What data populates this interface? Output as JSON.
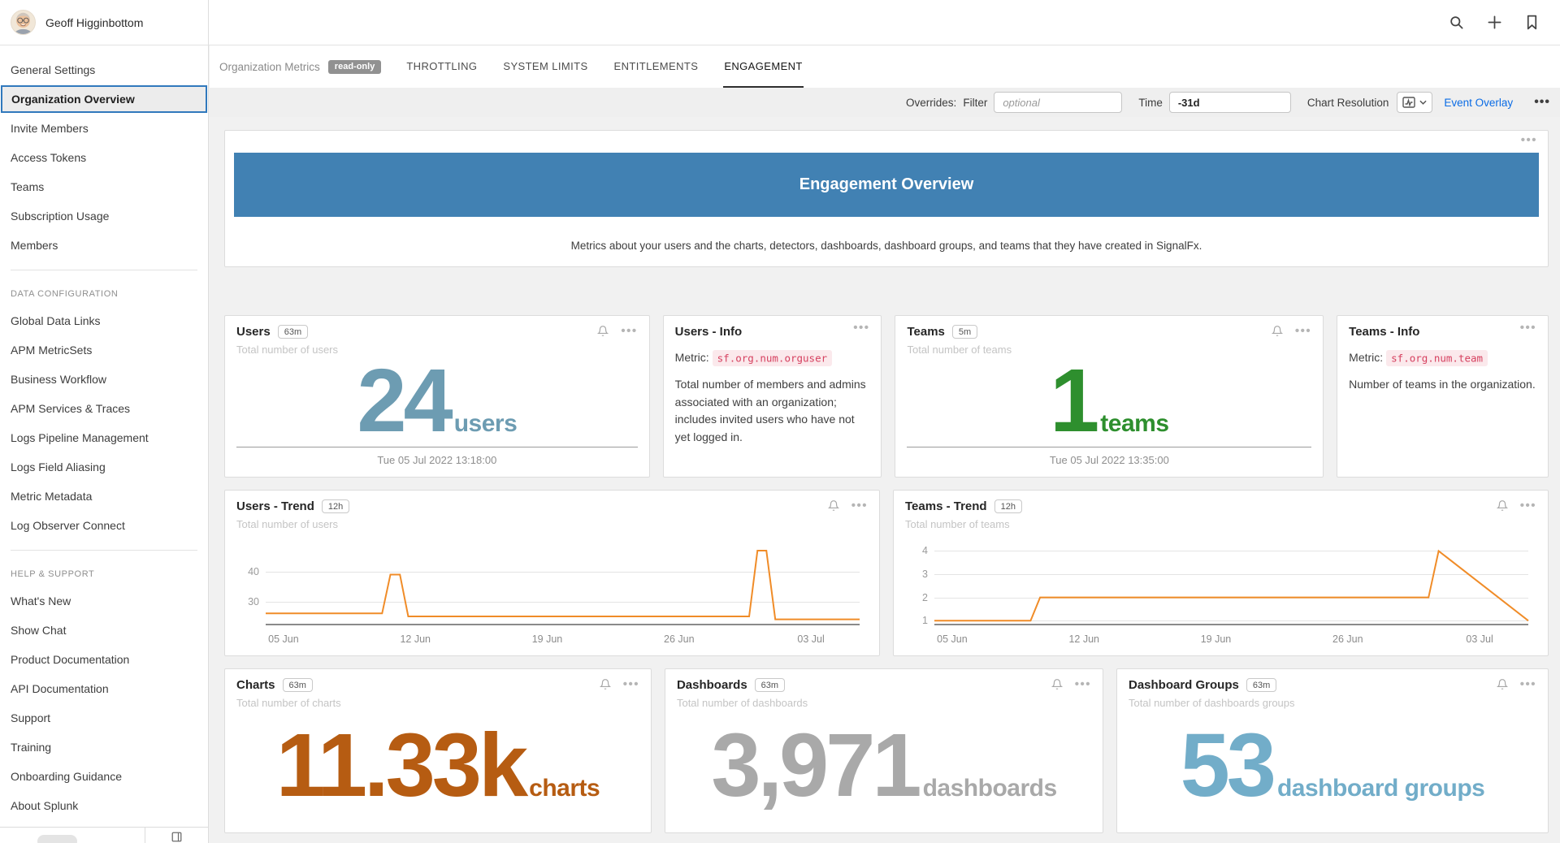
{
  "user": {
    "name": "Geoff Higginbottom"
  },
  "sidebar": {
    "selected": "Organization Overview",
    "sections": [
      {
        "header": null,
        "items": [
          "General Settings",
          "Organization Overview",
          "Invite Members",
          "Access Tokens",
          "Teams",
          "Subscription Usage",
          "Members"
        ]
      },
      {
        "header": "DATA CONFIGURATION",
        "items": [
          "Global Data Links",
          "APM MetricSets",
          "Business Workflow",
          "APM Services & Traces",
          "Logs Pipeline Management",
          "Logs Field Aliasing",
          "Metric Metadata",
          "Log Observer Connect"
        ]
      },
      {
        "header": "HELP & SUPPORT",
        "items": [
          "What's New",
          "Show Chat",
          "Product Documentation",
          "API Documentation",
          "Support",
          "Training",
          "Onboarding Guidance",
          "About Splunk"
        ]
      }
    ]
  },
  "tabbar": {
    "title": "Organization Metrics",
    "read_only_badge": "read-only",
    "tabs": [
      "THROTTLING",
      "SYSTEM LIMITS",
      "ENTITLEMENTS",
      "ENGAGEMENT"
    ],
    "active_tab": "ENGAGEMENT"
  },
  "toolbar": {
    "overrides_label": "Overrides:",
    "filter_label": "Filter",
    "filter_placeholder": "optional",
    "time_label": "Time",
    "time_value": "-31d",
    "chart_resolution_label": "Chart Resolution",
    "event_overlay_label": "Event Overlay"
  },
  "banner": {
    "title": "Engagement Overview",
    "description": "Metrics about your users and the charts, detectors, dashboards, dashboard groups, and teams that they have created in SignalFx.",
    "color": "#4181b3"
  },
  "cards": {
    "users": {
      "title": "Users",
      "badge": "63m",
      "subtitle": "Total number of users",
      "value": "24",
      "unit": "users",
      "timestamp": "Tue 05 Jul 2022 13:18:00",
      "color": "#6d9cb2"
    },
    "users_info": {
      "title": "Users - Info",
      "metric_label": "Metric:",
      "metric": "sf.org.num.orguser",
      "description": "Total number of members and admins associated with an organization; includes invited users who have not yet logged in."
    },
    "teams": {
      "title": "Teams",
      "badge": "5m",
      "subtitle": "Total number of teams",
      "value": "1",
      "unit": "teams",
      "timestamp": "Tue 05 Jul 2022 13:35:00",
      "color": "#2e8f2e"
    },
    "teams_info": {
      "title": "Teams - Info",
      "metric_label": "Metric:",
      "metric": "sf.org.num.team",
      "description": "Number of teams in the organization."
    },
    "charts": {
      "title": "Charts",
      "badge": "63m",
      "subtitle": "Total number of charts",
      "value": "11.33k",
      "unit": "charts",
      "color": "#b65c12"
    },
    "dashboards": {
      "title": "Dashboards",
      "badge": "63m",
      "subtitle": "Total number of dashboards",
      "value": "3,971",
      "unit": "dashboards",
      "color": "#a9a9a9"
    },
    "dashboard_groups": {
      "title": "Dashboard Groups",
      "badge": "63m",
      "subtitle": "Total number of dashboards groups",
      "value": "53",
      "unit": "dashboard groups",
      "color": "#72adc9"
    }
  },
  "chart_data": [
    {
      "type": "line",
      "title": "Users - Trend",
      "resolution_badge": "12h",
      "subtitle": "Total number of users",
      "x_ticks": [
        "05 Jun",
        "12 Jun",
        "19 Jun",
        "26 Jun",
        "03 Jul"
      ],
      "x_tick_pos": [
        3,
        25.2,
        47.4,
        69.6,
        91.8
      ],
      "y_ticks": [
        40,
        30
      ],
      "ylim": [
        22,
        50
      ],
      "grid": true,
      "legend": false,
      "series": [
        {
          "name": "Total number of users",
          "color": "#f08c28",
          "points": [
            [
              0,
              26
            ],
            [
              19.6,
              26
            ],
            [
              21,
              39
            ],
            [
              22.6,
              39
            ],
            [
              24,
              25
            ],
            [
              81.4,
              25
            ],
            [
              82.8,
              47
            ],
            [
              84.3,
              47
            ],
            [
              85.8,
              24
            ],
            [
              100,
              24
            ]
          ]
        }
      ]
    },
    {
      "type": "line",
      "title": "Teams - Trend",
      "resolution_badge": "12h",
      "subtitle": "Total number of teams",
      "x_ticks": [
        "05 Jun",
        "12 Jun",
        "19 Jun",
        "26 Jun",
        "03 Jul"
      ],
      "x_tick_pos": [
        3,
        25.2,
        47.4,
        69.6,
        91.8
      ],
      "y_ticks": [
        4,
        3,
        2,
        1
      ],
      "ylim": [
        0.8,
        4.4
      ],
      "grid": true,
      "legend": false,
      "series": [
        {
          "name": "Total number of teams",
          "color": "#f08c28",
          "points": [
            [
              0,
              1
            ],
            [
              16.2,
              1
            ],
            [
              17.8,
              2
            ],
            [
              83.2,
              2
            ],
            [
              84.9,
              4
            ],
            [
              100,
              1
            ]
          ]
        }
      ]
    }
  ]
}
